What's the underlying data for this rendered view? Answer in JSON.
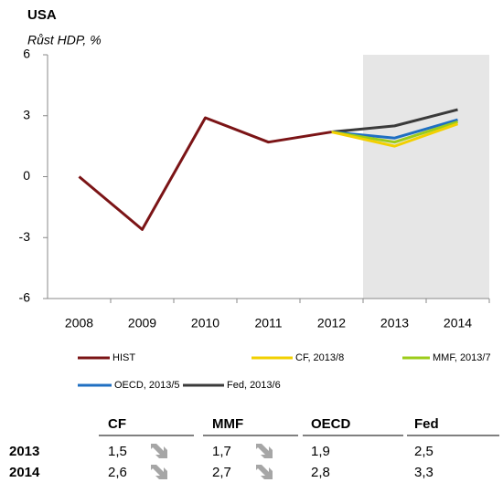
{
  "chart_data": {
    "type": "line",
    "title": "USA",
    "subtitle": "Růst HDP, %",
    "categories": [
      "2008",
      "2009",
      "2010",
      "2011",
      "2012",
      "2013",
      "2014"
    ],
    "series": [
      {
        "name": "HIST",
        "color": "#7b1416",
        "values": [
          0,
          -2.6,
          2.9,
          1.7,
          2.2,
          null,
          null
        ]
      },
      {
        "name": "CF, 2013/8",
        "color": "#f2d000",
        "values": [
          null,
          null,
          null,
          null,
          2.2,
          1.5,
          2.6
        ]
      },
      {
        "name": "MMF, 2013/7",
        "color": "#9ccc1a",
        "values": [
          null,
          null,
          null,
          null,
          2.2,
          1.7,
          2.7
        ]
      },
      {
        "name": "OECD, 2013/5",
        "color": "#1f6fc2",
        "values": [
          null,
          null,
          null,
          null,
          2.2,
          1.9,
          2.8
        ]
      },
      {
        "name": "Fed, 2013/6",
        "color": "#3a3a3a",
        "values": [
          null,
          null,
          null,
          null,
          2.2,
          2.5,
          3.3
        ]
      }
    ],
    "ylim": [
      -6,
      6
    ],
    "yticks": [
      -6,
      -3,
      0,
      3,
      6
    ],
    "grid": false
  },
  "table": {
    "columns": [
      "CF",
      "MMF",
      "OECD",
      "Fed"
    ],
    "rows": [
      {
        "label": "2013",
        "cells": [
          "1,5",
          "1,7",
          "1,9",
          "2,5"
        ]
      },
      {
        "label": "2014",
        "cells": [
          "2,6",
          "2,7",
          "2,8",
          "3,3"
        ]
      }
    ]
  }
}
